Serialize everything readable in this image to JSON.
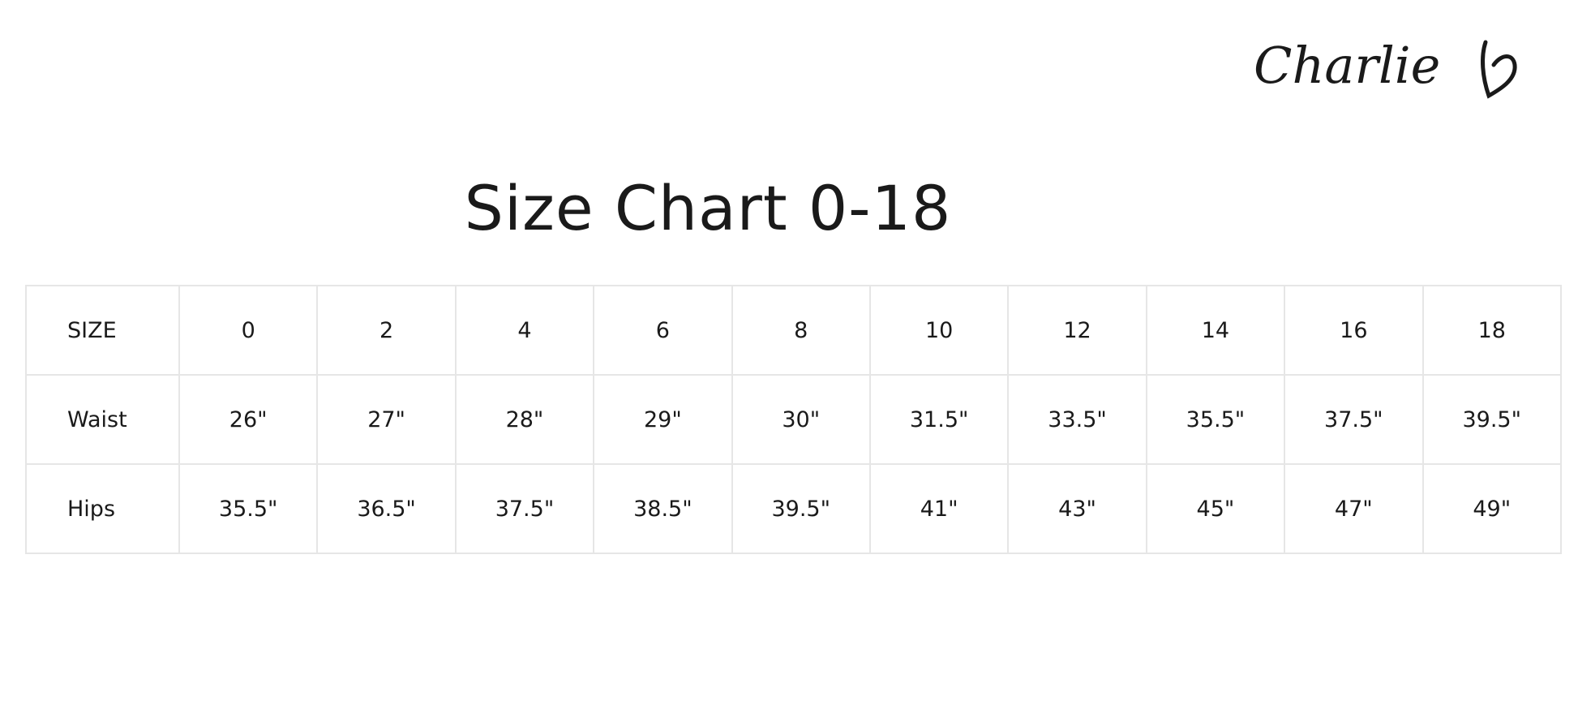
{
  "brand": {
    "logo_text": "Charlie",
    "logo_icon": "heart-icon"
  },
  "title": "Size Chart 0-18",
  "table": {
    "rows": [
      {
        "label": "SIZE",
        "values": [
          "0",
          "2",
          "4",
          "6",
          "8",
          "10",
          "12",
          "14",
          "16",
          "18"
        ]
      },
      {
        "label": "Waist",
        "values": [
          "26\"",
          "27\"",
          "28\"",
          "29\"",
          "30\"",
          "31.5\"",
          "33.5\"",
          "35.5\"",
          "37.5\"",
          "39.5\""
        ]
      },
      {
        "label": "Hips",
        "values": [
          "35.5\"",
          "36.5\"",
          "37.5\"",
          "38.5\"",
          "39.5\"",
          "41\"",
          "43\"",
          "45\"",
          "47\"",
          "49\""
        ]
      }
    ]
  },
  "colors": {
    "text": "#1a1a1a",
    "border": "#e6e6e6"
  }
}
